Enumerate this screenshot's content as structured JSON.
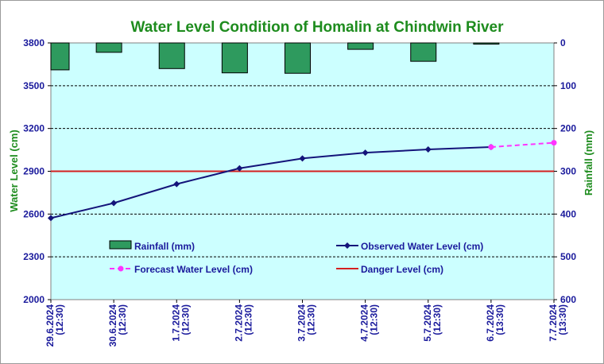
{
  "chart_data": {
    "type": "bar+line",
    "title": "Water Level Condition of Homalin at Chindwin River",
    "ylabel_left": "Water Level (cm)",
    "ylabel_right": "Rainfall (mm)",
    "categories": [
      [
        "29.6.2024",
        "(12:30)"
      ],
      [
        "30.6.2024",
        "(12:30)"
      ],
      [
        "1.7.2024",
        "(12:30)"
      ],
      [
        "2.7.2024",
        "(12:30)"
      ],
      [
        "3.7.2024",
        "(12:30)"
      ],
      [
        "4.7.2024",
        "(12:30)"
      ],
      [
        "5.7.2024",
        "(12:30)"
      ],
      [
        "6.7.2024",
        "(13:30)"
      ],
      [
        "7.7.2024",
        "(13:30)"
      ]
    ],
    "ylim_left": [
      2000,
      3800
    ],
    "yticks_left": [
      2000,
      2300,
      2600,
      2900,
      3200,
      3500,
      3800
    ],
    "ylim_right": [
      0,
      600
    ],
    "yticks_right": [
      0,
      100,
      200,
      300,
      400,
      500,
      600
    ],
    "right_axis_inverted": true,
    "grid": "horizontal dashed",
    "series": [
      {
        "name": "Rainfall (mm)",
        "kind": "bar",
        "axis": "right",
        "values": [
          63,
          22,
          60,
          70,
          71,
          15,
          43,
          1,
          null
        ],
        "color": "#2e9a5e"
      },
      {
        "name": "Observed Water Level (cm)",
        "kind": "line",
        "axis": "left",
        "values": [
          2572,
          2677,
          2810,
          2921,
          2990,
          3030,
          3053,
          3070,
          null
        ],
        "color": "#14147a"
      },
      {
        "name": "Forecast Water Level (cm)",
        "kind": "line",
        "axis": "left",
        "dashed": true,
        "values": [
          null,
          null,
          null,
          null,
          null,
          null,
          null,
          3070,
          3100
        ],
        "color": "#ff33ff"
      },
      {
        "name": "Danger Level (cm)",
        "kind": "hline",
        "axis": "left",
        "value": 2900,
        "color": "#d42020"
      }
    ],
    "plot_background": "#ccffff"
  }
}
